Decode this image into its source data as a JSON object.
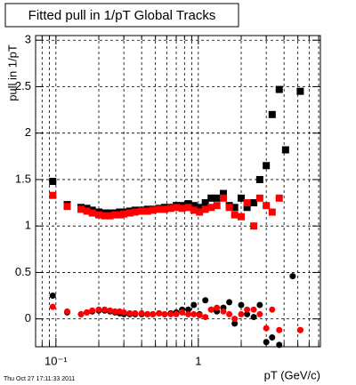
{
  "chart_data": {
    "type": "scatter",
    "title": "Fitted pull in 1/pT  Global Tracks",
    "x_label": "pT (GeV/c)",
    "y_label": "pull in 1/pT",
    "footer": "Thu Oct 27 17:11:33 2011",
    "x_log": true,
    "grid": true,
    "xlim": [
      0.072,
      7.2
    ],
    "ylim": [
      -0.3,
      3.05
    ],
    "xticks": [
      {
        "value": 0.1,
        "label": "10⁻¹"
      },
      1
    ],
    "xminor": [
      0.08,
      0.09,
      0.2,
      0.3,
      0.4,
      0.5,
      0.6,
      0.7,
      0.8,
      0.9,
      2,
      3,
      4,
      5,
      6,
      7
    ],
    "yticks": [
      0,
      0.5,
      1,
      1.5,
      2,
      2.5,
      3
    ],
    "x": [
      0.095,
      0.12,
      0.15,
      0.165,
      0.18,
      0.2,
      0.22,
      0.24,
      0.26,
      0.28,
      0.3,
      0.33,
      0.36,
      0.4,
      0.44,
      0.48,
      0.53,
      0.58,
      0.64,
      0.7,
      0.77,
      0.85,
      0.93,
      1.02,
      1.12,
      1.23,
      1.35,
      1.5,
      1.65,
      1.8,
      2.0,
      2.2,
      2.45,
      2.7,
      3.0,
      3.3,
      3.7,
      4.1,
      4.6,
      5.2
    ],
    "series": [
      {
        "color": "#000000",
        "marker": "square",
        "values": [
          1.48,
          1.23,
          1.2,
          1.19,
          1.17,
          1.15,
          1.14,
          1.14,
          1.14,
          1.15,
          1.15,
          1.16,
          1.17,
          1.17,
          1.18,
          1.18,
          1.19,
          1.2,
          1.2,
          1.22,
          1.22,
          1.24,
          1.22,
          1.2,
          1.25,
          1.3,
          1.3,
          1.35,
          1.22,
          1.2,
          1.3,
          1.2,
          1.25,
          1.5,
          1.65,
          2.2,
          2.47,
          1.82,
          null,
          2.45
        ]
      },
      {
        "color": "#ff0000",
        "marker": "square",
        "values": [
          1.33,
          1.21,
          1.18,
          1.16,
          1.14,
          1.12,
          1.11,
          1.11,
          1.12,
          1.12,
          1.13,
          1.14,
          1.15,
          1.16,
          1.16,
          1.17,
          1.18,
          1.18,
          1.19,
          1.2,
          1.19,
          1.2,
          1.17,
          1.15,
          1.18,
          1.2,
          1.22,
          1.3,
          1.2,
          1.12,
          1.1,
          1.25,
          1.0,
          1.3,
          1.22,
          1.15,
          1.3,
          null,
          null,
          null
        ]
      },
      {
        "color": "#000000",
        "marker": "circle",
        "values": [
          0.25,
          0.07,
          0.05,
          0.07,
          0.08,
          0.09,
          0.09,
          0.08,
          0.07,
          0.06,
          0.05,
          0.05,
          0.05,
          0.05,
          0.05,
          0.05,
          0.06,
          0.05,
          0.06,
          0.07,
          0.1,
          0.1,
          0.15,
          0.05,
          0.2,
          0.1,
          0.08,
          0.12,
          0.18,
          -0.05,
          0.15,
          0.05,
          0.02,
          0.15,
          -0.25,
          -0.2,
          -0.28,
          null,
          0.46,
          -0.12
        ]
      },
      {
        "color": "#ff0000",
        "marker": "circle",
        "values": [
          0.13,
          0.08,
          0.05,
          0.07,
          0.09,
          0.1,
          0.1,
          0.09,
          0.08,
          0.08,
          0.07,
          0.06,
          0.06,
          0.06,
          0.05,
          0.05,
          0.06,
          0.05,
          0.05,
          0.05,
          0.07,
          0.05,
          0.05,
          0.04,
          0.02,
          0.1,
          0.12,
          0.08,
          0.05,
          0.0,
          0.05,
          0.1,
          0.1,
          0.05,
          -0.1,
          0.1,
          -0.12,
          null,
          null,
          -0.12
        ]
      }
    ]
  }
}
